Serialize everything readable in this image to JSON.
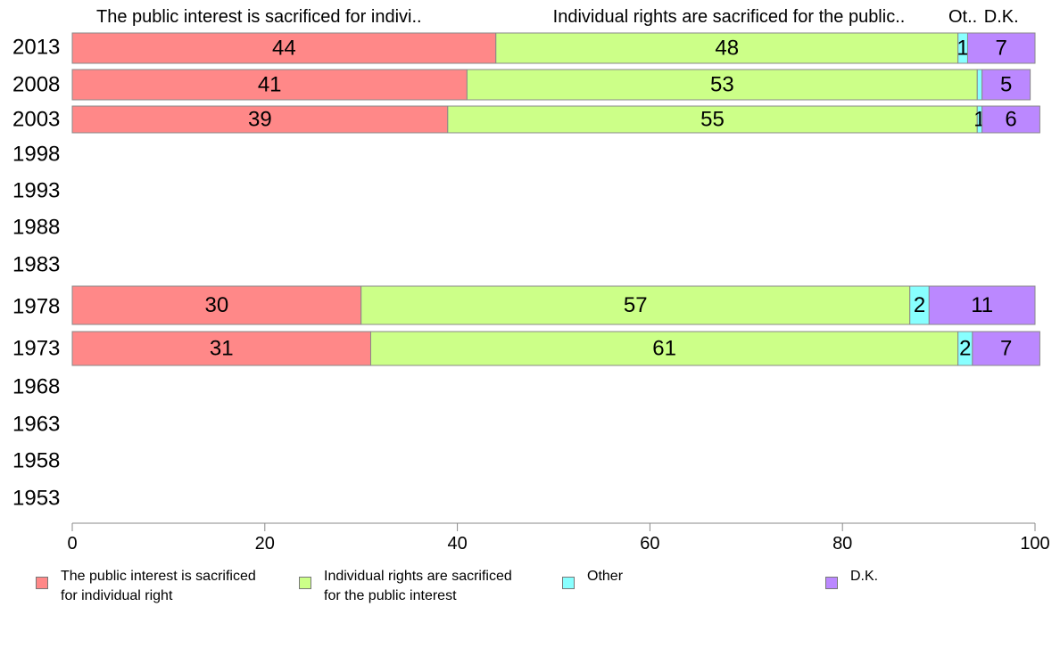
{
  "chart_data": {
    "type": "bar",
    "orientation": "horizontal",
    "stacked": true,
    "categories": [
      "2013",
      "2008",
      "2003",
      "1998",
      "1993",
      "1988",
      "1983",
      "1978",
      "1973",
      "1968",
      "1963",
      "1958",
      "1953"
    ],
    "series": [
      {
        "name": "The public interest is sacrificed for individual right",
        "header": "The public interest is sacrificed for indivi..",
        "color": "#ff8888",
        "values": [
          44,
          41,
          39,
          null,
          null,
          null,
          null,
          30,
          31,
          null,
          null,
          null,
          null
        ]
      },
      {
        "name": "Individual rights are sacrificed for the public interest",
        "header": "Individual rights are sacrificed for the public..",
        "color": "#ccff88",
        "values": [
          48,
          53,
          55,
          null,
          null,
          null,
          null,
          57,
          61,
          null,
          null,
          null,
          null
        ]
      },
      {
        "name": "Other",
        "header": "Ot..",
        "color": "#88ffff",
        "values": [
          1,
          0.5,
          0.5,
          null,
          null,
          null,
          null,
          2,
          1.5,
          null,
          null,
          null,
          null
        ]
      },
      {
        "name": "D.K.",
        "header": "D.K.",
        "color": "#bb88ff",
        "values": [
          7,
          5,
          6,
          null,
          null,
          null,
          null,
          11,
          7,
          null,
          null,
          null,
          null
        ]
      }
    ],
    "data_labels": [
      [
        "44",
        "48",
        "1",
        "7"
      ],
      [
        "41",
        "53",
        "",
        "5"
      ],
      [
        "39",
        "55",
        "1",
        "6"
      ],
      null,
      null,
      null,
      null,
      [
        "30",
        "57",
        "2",
        "11"
      ],
      [
        "31",
        "61",
        "2",
        "7"
      ],
      null,
      null,
      null,
      null
    ],
    "xlim": [
      0,
      100
    ],
    "xticks": [
      "0",
      "20",
      "40",
      "60",
      "80",
      "100"
    ],
    "xlabel": "",
    "ylabel": "",
    "grid": false,
    "legend_position": "bottom"
  },
  "legend": [
    {
      "label": "The public interest is sacrificed\nfor individual right",
      "color": "#ff8888"
    },
    {
      "label": "Individual rights are sacrificed\nfor the public interest",
      "color": "#ccff88"
    },
    {
      "label": "Other",
      "color": "#88ffff"
    },
    {
      "label": "D.K.",
      "color": "#bb88ff"
    }
  ]
}
